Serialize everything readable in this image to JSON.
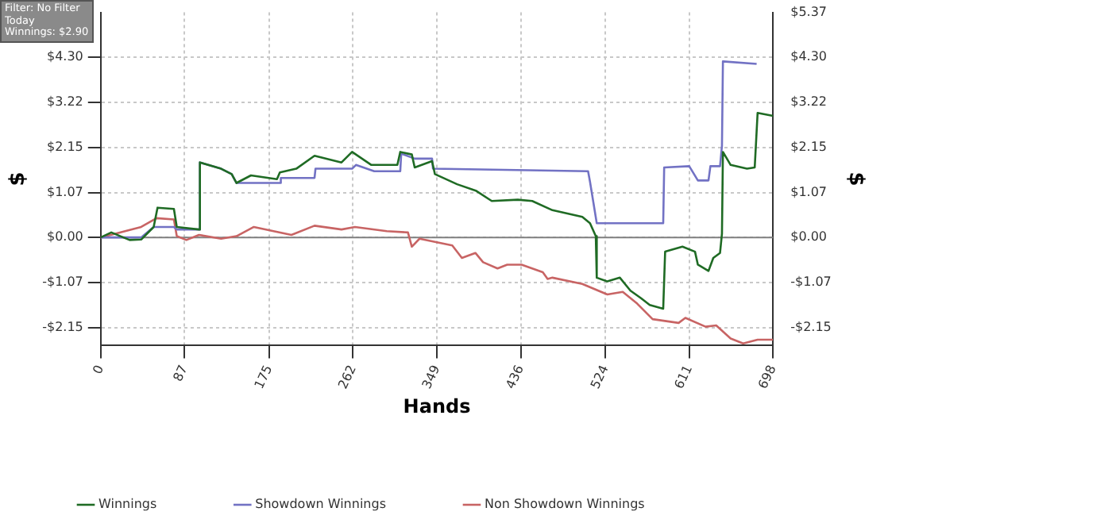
{
  "chart_data": {
    "type": "line",
    "xlabel": "Hands",
    "ylabel": "$",
    "y2label": "$",
    "annotations": [
      "Filter: No Filter",
      "Today",
      "Winnings: $2.90"
    ],
    "xlim": [
      0,
      698
    ],
    "xticks": [
      0,
      87,
      175,
      262,
      349,
      436,
      524,
      611,
      698
    ],
    "ylim": [
      -2.58,
      5.37
    ],
    "yticks": [
      {
        "value": -2.15,
        "label": "-$2.15"
      },
      {
        "value": -1.07,
        "label": "-$1.07"
      },
      {
        "value": 0,
        "label": "$0.00"
      },
      {
        "value": 1.07,
        "label": "$1.07"
      },
      {
        "value": 2.15,
        "label": "$2.15"
      },
      {
        "value": 3.22,
        "label": "$3.22"
      },
      {
        "value": 4.3,
        "label": "$4.30"
      }
    ],
    "y2lim": [
      -2.58,
      5.37
    ],
    "y2ticks": [
      {
        "value": -2.15,
        "label": "-$2.15"
      },
      {
        "value": -1.07,
        "label": "-$1.07"
      },
      {
        "value": 0,
        "label": "$0.00"
      },
      {
        "value": 1.07,
        "label": "$1.07"
      },
      {
        "value": 2.15,
        "label": "$2.15"
      },
      {
        "value": 3.22,
        "label": "$3.22"
      },
      {
        "value": 4.3,
        "label": "$4.30"
      },
      {
        "value": 5.37,
        "label": "$5.37"
      }
    ],
    "ref_lines": [
      {
        "axis": "y",
        "value": 0,
        "color": "#808080"
      }
    ],
    "grid": true,
    "legend": "bottom",
    "marker": "none",
    "line_style": "solid",
    "series": [
      {
        "name": "Winnings",
        "color": "#1f6b24",
        "x": [
          0,
          11,
          30,
          42,
          55,
          59,
          76,
          79,
          102,
          103,
          125,
          136,
          141,
          156,
          183,
          186,
          203,
          222,
          250,
          261,
          281,
          308,
          311,
          323,
          326,
          344,
          347,
          370,
          390,
          406,
          433,
          448,
          469,
          500,
          508,
          514,
          515,
          526,
          539,
          550,
          561,
          570,
          584,
          586,
          604,
          617,
          620,
          631,
          636,
          643,
          645,
          646,
          654,
          671,
          679,
          682,
          698
        ],
        "values": [
          0,
          0.12,
          -0.06,
          -0.05,
          0.25,
          0.71,
          0.68,
          0.25,
          0.19,
          1.79,
          1.64,
          1.51,
          1.3,
          1.48,
          1.39,
          1.55,
          1.64,
          1.95,
          1.79,
          2.04,
          1.73,
          1.73,
          2.04,
          1.98,
          1.67,
          1.82,
          1.51,
          1.27,
          1.11,
          0.87,
          0.9,
          0.87,
          0.65,
          0.49,
          0.34,
          0.03,
          -0.96,
          -1.05,
          -0.96,
          -1.27,
          -1.45,
          -1.61,
          -1.7,
          -0.34,
          -0.22,
          -0.34,
          -0.65,
          -0.8,
          -0.49,
          -0.37,
          0.09,
          2.04,
          1.73,
          1.64,
          1.67,
          2.97,
          2.9
        ]
      },
      {
        "name": "Showdown Winnings",
        "color": "#7272c4",
        "x": [
          0,
          42,
          55,
          76,
          79,
          102,
          103,
          125,
          136,
          141,
          186,
          187,
          222,
          223,
          261,
          265,
          284,
          311,
          312,
          326,
          344,
          345,
          506,
          508,
          515,
          584,
          585,
          611,
          620,
          631,
          633,
          643,
          645,
          646,
          681
        ],
        "values": [
          0,
          0,
          0.25,
          0.25,
          0.19,
          0.19,
          1.79,
          1.64,
          1.51,
          1.3,
          1.3,
          1.42,
          1.42,
          1.64,
          1.64,
          1.73,
          1.58,
          1.58,
          2.0,
          1.88,
          1.88,
          1.64,
          1.58,
          1.33,
          0.34,
          0.34,
          1.67,
          1.7,
          1.36,
          1.36,
          1.7,
          1.7,
          2.19,
          4.2,
          4.14
        ]
      },
      {
        "name": "Non Showdown Winnings",
        "color": "#c86464",
        "x": [
          0,
          42,
          58,
          76,
          79,
          89,
          102,
          125,
          141,
          159,
          198,
          222,
          250,
          264,
          297,
          319,
          323,
          331,
          350,
          365,
          375,
          389,
          397,
          412,
          422,
          437,
          459,
          464,
          469,
          500,
          526,
          542,
          557,
          573,
          600,
          607,
          628,
          639,
          654,
          667,
          682,
          698
        ],
        "values": [
          0,
          0.25,
          0.46,
          0.43,
          0.03,
          -0.06,
          0.06,
          -0.03,
          0.03,
          0.25,
          0.06,
          0.28,
          0.19,
          0.25,
          0.15,
          0.12,
          -0.22,
          -0.03,
          -0.12,
          -0.19,
          -0.49,
          -0.37,
          -0.59,
          -0.74,
          -0.65,
          -0.65,
          -0.83,
          -0.99,
          -0.96,
          -1.11,
          -1.36,
          -1.3,
          -1.58,
          -1.95,
          -2.04,
          -1.92,
          -2.13,
          -2.1,
          -2.41,
          -2.53,
          -2.44,
          -2.44
        ]
      }
    ]
  }
}
